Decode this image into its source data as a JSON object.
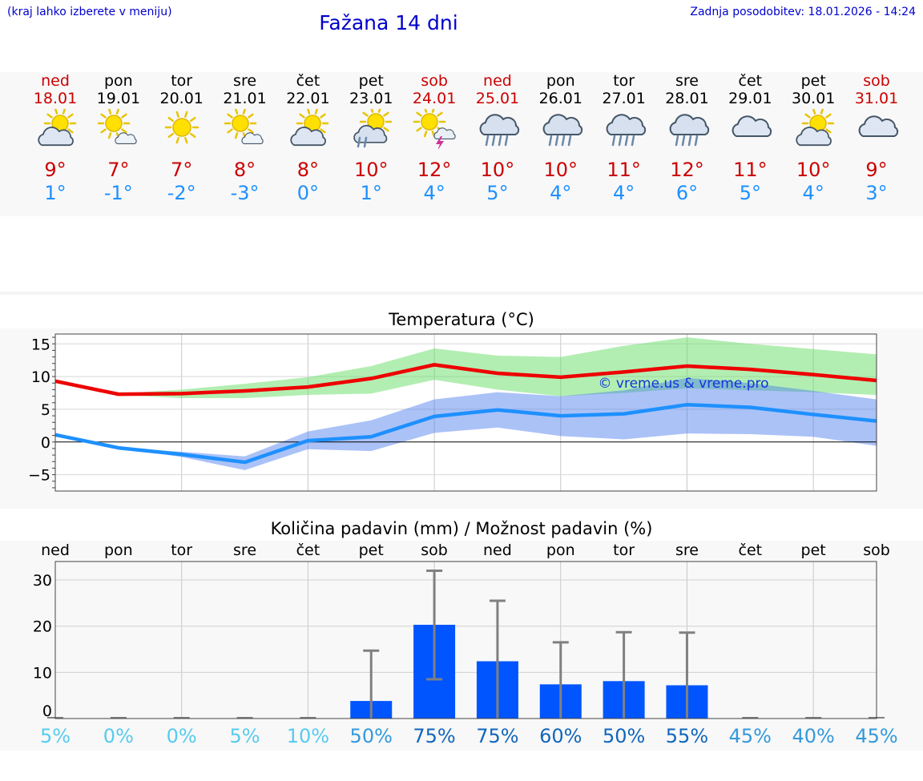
{
  "header": {
    "note": "(kraj lahko izberete v meniju)",
    "title": "Fažana 14 dni",
    "updated": "Zadnja posodobitev: 18.01.2026 - 14:24"
  },
  "days": [
    {
      "name": "ned",
      "date": "18.01",
      "weekend": true,
      "icon": "sun-cloud",
      "tmax": "9°",
      "tmin": "1°"
    },
    {
      "name": "pon",
      "date": "19.01",
      "weekend": false,
      "icon": "sun-small-cloud",
      "tmax": "7°",
      "tmin": "-1°"
    },
    {
      "name": "tor",
      "date": "20.01",
      "weekend": false,
      "icon": "sun",
      "tmax": "7°",
      "tmin": "-2°"
    },
    {
      "name": "sre",
      "date": "21.01",
      "weekend": false,
      "icon": "sun-small-cloud",
      "tmax": "8°",
      "tmin": "-3°"
    },
    {
      "name": "čet",
      "date": "22.01",
      "weekend": false,
      "icon": "sun-cloud",
      "tmax": "8°",
      "tmin": "0°"
    },
    {
      "name": "pet",
      "date": "23.01",
      "weekend": false,
      "icon": "sun-cloud-rain",
      "tmax": "10°",
      "tmin": "1°"
    },
    {
      "name": "sob",
      "date": "24.01",
      "weekend": true,
      "icon": "sun-thunder",
      "tmax": "12°",
      "tmin": "4°"
    },
    {
      "name": "ned",
      "date": "25.01",
      "weekend": true,
      "icon": "cloud-rain",
      "tmax": "10°",
      "tmin": "5°"
    },
    {
      "name": "pon",
      "date": "26.01",
      "weekend": false,
      "icon": "cloud-rain",
      "tmax": "10°",
      "tmin": "4°"
    },
    {
      "name": "tor",
      "date": "27.01",
      "weekend": false,
      "icon": "cloud-rain",
      "tmax": "11°",
      "tmin": "4°"
    },
    {
      "name": "sre",
      "date": "28.01",
      "weekend": false,
      "icon": "cloud-rain",
      "tmax": "12°",
      "tmin": "6°"
    },
    {
      "name": "čet",
      "date": "29.01",
      "weekend": false,
      "icon": "cloud",
      "tmax": "11°",
      "tmin": "5°"
    },
    {
      "name": "pet",
      "date": "30.01",
      "weekend": false,
      "icon": "sun-cloud",
      "tmax": "10°",
      "tmin": "4°"
    },
    {
      "name": "sob",
      "date": "31.01",
      "weekend": true,
      "icon": "cloud",
      "tmax": "9°",
      "tmin": "3°"
    }
  ],
  "chart_data": [
    {
      "type": "line",
      "title": "Temperatura (°C)",
      "watermark": "© vreme.us & vreme.pro",
      "ylim": [
        -7.5,
        16.5
      ],
      "yticks": [
        "15",
        "10",
        "5",
        "0",
        "−5"
      ],
      "ytick_values": [
        15,
        10,
        5,
        0,
        -5
      ],
      "x": [
        0,
        1,
        2,
        3,
        4,
        5,
        6,
        7,
        8,
        9,
        10,
        11,
        12,
        13
      ],
      "series": [
        {
          "name": "max",
          "color": "#ee0000",
          "values": [
            9.3,
            7.3,
            7.4,
            7.8,
            8.4,
            9.7,
            11.8,
            10.5,
            9.9,
            10.7,
            11.6,
            11.1,
            10.3,
            9.4
          ],
          "band_low": [
            9.3,
            7.2,
            6.7,
            6.7,
            7.2,
            7.4,
            9.5,
            8.0,
            7.0,
            7.5,
            8.2,
            7.9,
            7.6,
            7.2
          ],
          "band_high": [
            9.3,
            7.4,
            8.0,
            8.9,
            9.9,
            11.6,
            14.3,
            13.2,
            13.0,
            14.7,
            16.0,
            15.0,
            14.2,
            13.4
          ]
        },
        {
          "name": "min",
          "color": "#1e90ff",
          "values": [
            1.1,
            -0.9,
            -1.9,
            -3.1,
            0.2,
            0.8,
            3.9,
            4.9,
            4.0,
            4.3,
            5.7,
            5.3,
            4.2,
            3.2
          ],
          "band_low": [
            1.1,
            -0.9,
            -2.3,
            -4.3,
            -1.1,
            -1.4,
            1.4,
            2.2,
            0.9,
            0.4,
            1.3,
            1.2,
            0.8,
            -0.6
          ],
          "band_high": [
            1.1,
            -0.9,
            -1.5,
            -2.2,
            1.6,
            3.3,
            6.5,
            7.6,
            7.0,
            7.9,
            9.8,
            9.0,
            7.8,
            6.5
          ]
        }
      ]
    },
    {
      "type": "bar",
      "title": "Količina padavin (mm) / Možnost padavin (%)",
      "categories": [
        "ned",
        "pon",
        "tor",
        "sre",
        "čet",
        "pet",
        "sob",
        "ned",
        "pon",
        "tor",
        "sre",
        "čet",
        "pet",
        "sob"
      ],
      "values": [
        0,
        0,
        0,
        0,
        0,
        3.8,
        20.3,
        12.4,
        7.4,
        8.1,
        7.2,
        0,
        0,
        0
      ],
      "error_high": [
        0,
        0,
        0,
        0,
        0,
        14.7,
        32.0,
        25.5,
        16.5,
        18.7,
        18.6,
        0,
        0,
        0
      ],
      "error_low": [
        0,
        0,
        0,
        0,
        0,
        0,
        8.5,
        0,
        0,
        0,
        0,
        0,
        0,
        0
      ],
      "ylim": [
        0,
        34
      ],
      "yticks": [
        "30",
        "20",
        "10",
        "0"
      ],
      "ytick_values": [
        30,
        20,
        10,
        0
      ],
      "probabilities": [
        "5%",
        "0%",
        "0%",
        "5%",
        "10%",
        "50%",
        "75%",
        "75%",
        "60%",
        "50%",
        "55%",
        "45%",
        "40%",
        "45%"
      ],
      "prob_colors": [
        "#55ccee",
        "#55ccee",
        "#55ccee",
        "#55ccee",
        "#55ccee",
        "#3399dd",
        "#1166bb",
        "#1166bb",
        "#1166bb",
        "#1166bb",
        "#1166bb",
        "#3399dd",
        "#3399dd",
        "#3399dd"
      ]
    }
  ]
}
